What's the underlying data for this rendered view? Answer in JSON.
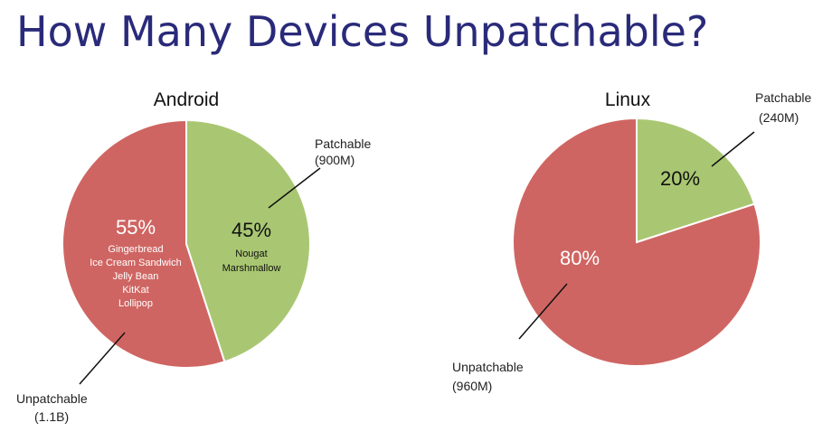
{
  "title": "How Many Devices Unpatchable?",
  "chart_data": [
    {
      "type": "pie",
      "title": "Android",
      "slices": [
        {
          "label": "Patchable",
          "amount": "(900M)",
          "percent": 45,
          "display": "45%",
          "versions": [
            "Nougat",
            "Marshmallow"
          ],
          "color": "#a9c772"
        },
        {
          "label": "Unpatchable",
          "amount": "(1.1B)",
          "percent": 55,
          "display": "55%",
          "versions": [
            "Gingerbread",
            "Ice Cream Sandwich",
            "Jelly Bean",
            "KitKat",
            "Lollipop"
          ],
          "color": "#cf6562"
        }
      ]
    },
    {
      "type": "pie",
      "title": "Linux",
      "slices": [
        {
          "label": "Patchable",
          "amount": "(240M)",
          "percent": 20,
          "display": "20%",
          "versions": [],
          "color": "#a9c772"
        },
        {
          "label": "Unpatchable",
          "amount": "(960M)",
          "percent": 80,
          "display": "80%",
          "versions": [],
          "color": "#cf6562"
        }
      ]
    }
  ]
}
